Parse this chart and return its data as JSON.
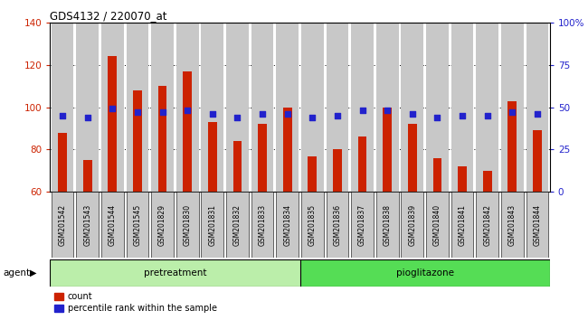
{
  "title": "GDS4132 / 220070_at",
  "categories": [
    "GSM201542",
    "GSM201543",
    "GSM201544",
    "GSM201545",
    "GSM201829",
    "GSM201830",
    "GSM201831",
    "GSM201832",
    "GSM201833",
    "GSM201834",
    "GSM201835",
    "GSM201836",
    "GSM201837",
    "GSM201838",
    "GSM201839",
    "GSM201840",
    "GSM201841",
    "GSM201842",
    "GSM201843",
    "GSM201844"
  ],
  "bar_values": [
    88,
    75,
    124,
    108,
    110,
    117,
    93,
    84,
    92,
    100,
    77,
    80,
    86,
    100,
    92,
    76,
    72,
    70,
    103,
    89
  ],
  "percentile_values": [
    45,
    44,
    49,
    47,
    47,
    48,
    46,
    44,
    46,
    46,
    44,
    45,
    48,
    48,
    46,
    44,
    45,
    45,
    47,
    46
  ],
  "bar_color": "#cc2200",
  "dot_color": "#2222cc",
  "ylim_left": [
    60,
    140
  ],
  "ylim_right": [
    0,
    100
  ],
  "yticks_left": [
    60,
    80,
    100,
    120,
    140
  ],
  "yticks_right": [
    0,
    25,
    50,
    75,
    100
  ],
  "ytick_labels_right": [
    "0",
    "25",
    "50",
    "75",
    "100%"
  ],
  "grid_lines": [
    80,
    100,
    120
  ],
  "pretreatment_count": 10,
  "pioglitazone_count": 10,
  "pretreatment_label": "pretreatment",
  "pioglitazone_label": "pioglitazone",
  "agent_label": "agent",
  "legend_count": "count",
  "legend_percentile": "percentile rank within the sample",
  "pretreatment_color": "#bbeeaa",
  "pioglitazone_color": "#55dd55",
  "bar_bg": "#c8c8c8",
  "bar_bottom": 60,
  "fig_width": 6.5,
  "fig_height": 3.54
}
